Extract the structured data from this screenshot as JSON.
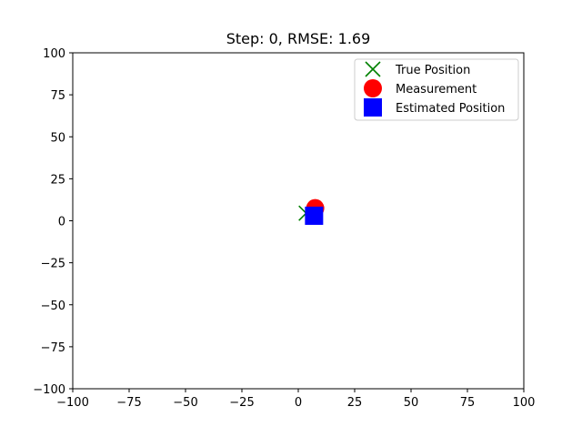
{
  "chart_data": {
    "type": "scatter",
    "title": "Step: 0, RMSE: 1.69",
    "xlabel": "",
    "ylabel": "",
    "xlim": [
      -100,
      100
    ],
    "ylim": [
      -100,
      100
    ],
    "xticks": [
      -100,
      -75,
      -50,
      -25,
      0,
      25,
      50,
      75,
      100
    ],
    "yticks": [
      -100,
      -75,
      -50,
      -25,
      0,
      25,
      50,
      75,
      100
    ],
    "xtick_labels": [
      "−100",
      "−75",
      "−50",
      "−25",
      "0",
      "25",
      "50",
      "75",
      "100"
    ],
    "ytick_labels": [
      "−100",
      "−75",
      "−50",
      "−25",
      "0",
      "25",
      "50",
      "75",
      "100"
    ],
    "grid": false,
    "legend_position": "top-right",
    "series": [
      {
        "name": "True Position",
        "marker": "x-icon",
        "color": "#008000",
        "points": [
          {
            "x": 3.5,
            "y": 4.5
          }
        ]
      },
      {
        "name": "Measurement",
        "marker": "circle-icon",
        "color": "#ff0000",
        "points": [
          {
            "x": 7.5,
            "y": 7.5
          }
        ]
      },
      {
        "name": "Estimated Position",
        "marker": "square-icon",
        "color": "#0000ff",
        "points": [
          {
            "x": 7.0,
            "y": 3.0
          }
        ]
      }
    ]
  }
}
